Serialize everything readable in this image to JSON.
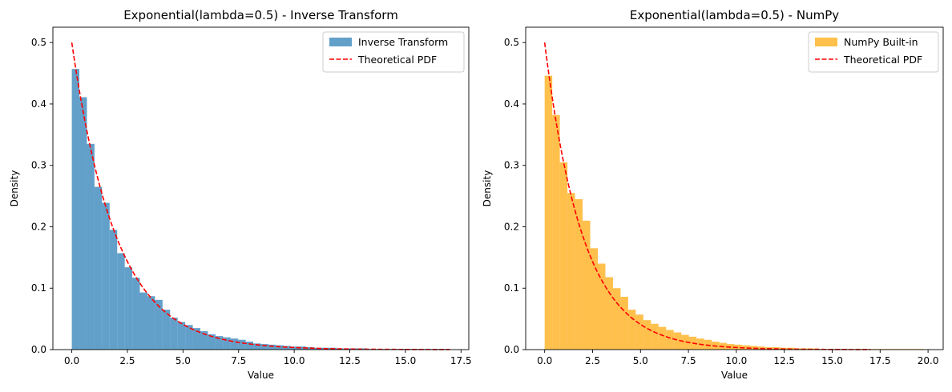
{
  "chart_data": [
    {
      "type": "bar",
      "subtype": "histogram-with-pdf",
      "title": "Exponential(lambda=0.5) - Inverse Transform",
      "xlabel": "Value",
      "ylabel": "Density",
      "xlim": [
        -0.85,
        17.85
      ],
      "ylim": [
        0,
        0.525
      ],
      "xticks": [
        0,
        2.5,
        5,
        7.5,
        10,
        12.5,
        15,
        17.5
      ],
      "xtick_labels": [
        "0.0",
        "2.5",
        "5.0",
        "7.5",
        "10.0",
        "12.5",
        "15.0",
        "17.5"
      ],
      "yticks": [
        0,
        0.1,
        0.2,
        0.3,
        0.4,
        0.5
      ],
      "ytick_labels": [
        "0.0",
        "0.1",
        "0.2",
        "0.3",
        "0.4",
        "0.5"
      ],
      "legend_position": "top-right",
      "histogram": {
        "name": "Inverse Transform",
        "color": "#1f77b4",
        "alpha": 0.7,
        "bin_start": 0,
        "bin_width": 0.34,
        "values": [
          0.457,
          0.411,
          0.335,
          0.265,
          0.239,
          0.195,
          0.157,
          0.134,
          0.117,
          0.093,
          0.087,
          0.081,
          0.065,
          0.052,
          0.045,
          0.04,
          0.035,
          0.03,
          0.025,
          0.022,
          0.02,
          0.018,
          0.016,
          0.013,
          0.01,
          0.009,
          0.008,
          0.007,
          0.006,
          0.005,
          0.005,
          0.004,
          0.003,
          0.003,
          0.003,
          0.002,
          0.002,
          0.002,
          0.002,
          0.001,
          0.001,
          0.001,
          0.001,
          0.001,
          0.001,
          0.001,
          0.001,
          0.001,
          0.001,
          0.001
        ]
      },
      "pdf": {
        "name": "Theoretical PDF",
        "color": "#ff0000",
        "lambda": 0.5,
        "x_range": [
          0,
          17
        ]
      }
    },
    {
      "type": "bar",
      "subtype": "histogram-with-pdf",
      "title": "Exponential(lambda=0.5) - NumPy",
      "xlabel": "Value",
      "ylabel": "Density",
      "xlim": [
        -0.99,
        20.79
      ],
      "ylim": [
        0,
        0.525
      ],
      "xticks": [
        0,
        2.5,
        5,
        7.5,
        10,
        12.5,
        15,
        17.5,
        20
      ],
      "xtick_labels": [
        "0.0",
        "2.5",
        "5.0",
        "7.5",
        "10.0",
        "12.5",
        "15.0",
        "17.5",
        "20.0"
      ],
      "yticks": [
        0,
        0.1,
        0.2,
        0.3,
        0.4,
        0.5
      ],
      "ytick_labels": [
        "0.0",
        "0.1",
        "0.2",
        "0.3",
        "0.4",
        "0.5"
      ],
      "legend_position": "top-right",
      "histogram": {
        "name": "NumPy Built-in",
        "color": "#ffa500",
        "alpha": 0.7,
        "bin_start": 0,
        "bin_width": 0.396,
        "values": [
          0.446,
          0.382,
          0.305,
          0.255,
          0.245,
          0.21,
          0.165,
          0.14,
          0.118,
          0.1,
          0.086,
          0.065,
          0.057,
          0.048,
          0.042,
          0.037,
          0.032,
          0.028,
          0.024,
          0.021,
          0.018,
          0.016,
          0.013,
          0.011,
          0.009,
          0.008,
          0.007,
          0.006,
          0.005,
          0.004,
          0.004,
          0.003,
          0.003,
          0.002,
          0.002,
          0.002,
          0.001,
          0.001,
          0.001,
          0.001,
          0.001,
          0.001,
          0.001,
          0.001,
          0.001,
          0.001,
          0.001,
          0.001,
          0.001,
          0.001
        ]
      },
      "pdf": {
        "name": "Theoretical PDF",
        "color": "#ff0000",
        "lambda": 0.5,
        "x_range": [
          0,
          17
        ]
      }
    }
  ]
}
